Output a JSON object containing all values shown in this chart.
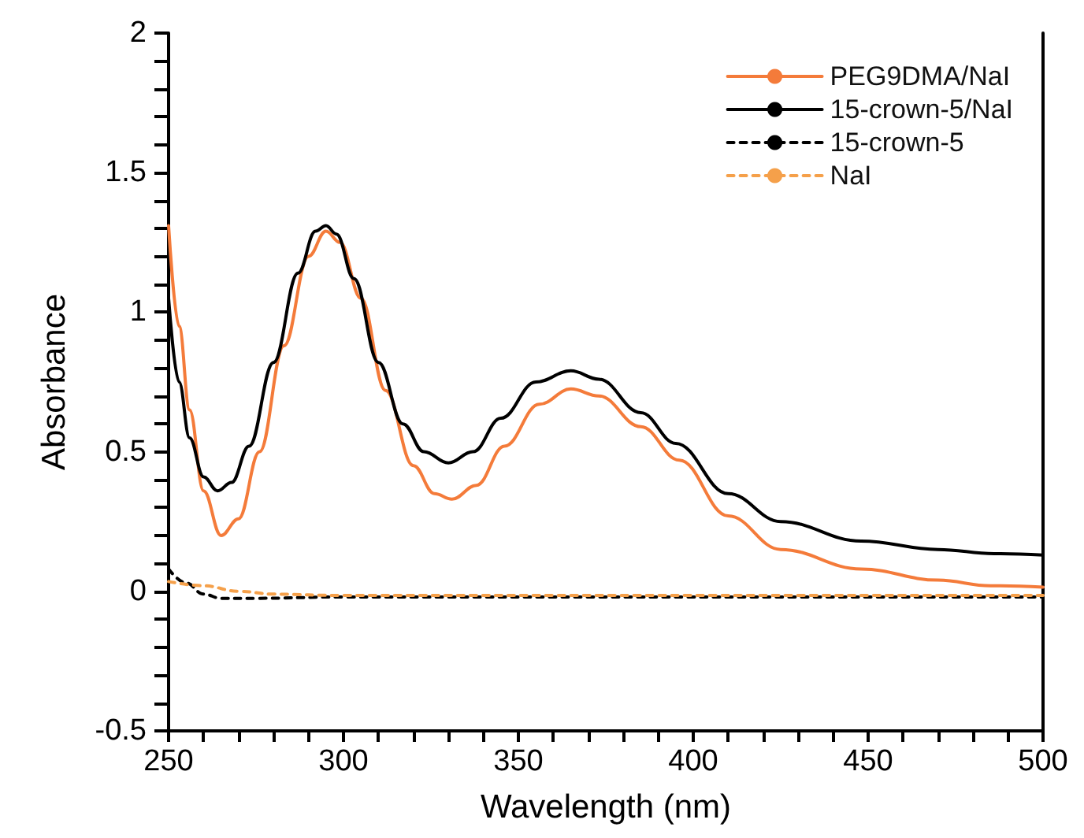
{
  "chart_data": {
    "type": "line",
    "xlabel": "Wavelength (nm)",
    "ylabel": "Absorbance",
    "xlim": [
      250,
      500
    ],
    "ylim": [
      -0.5,
      2
    ],
    "xticks": [
      250,
      {
        "value": 260,
        "label": null
      },
      {
        "value": 270,
        "label": null
      },
      {
        "value": 280,
        "label": null
      },
      {
        "value": 290,
        "label": null
      },
      300,
      {
        "value": 310,
        "label": null
      },
      {
        "value": 320,
        "label": null
      },
      {
        "value": 330,
        "label": null
      },
      {
        "value": 340,
        "label": null
      },
      350,
      {
        "value": 360,
        "label": null
      },
      {
        "value": 370,
        "label": null
      },
      {
        "value": 380,
        "label": null
      },
      {
        "value": 390,
        "label": null
      },
      400,
      {
        "value": 410,
        "label": null
      },
      {
        "value": 420,
        "label": null
      },
      {
        "value": 430,
        "label": null
      },
      {
        "value": 440,
        "label": null
      },
      450,
      {
        "value": 460,
        "label": null
      },
      {
        "value": 470,
        "label": null
      },
      {
        "value": 480,
        "label": null
      },
      {
        "value": 490,
        "label": null
      },
      500
    ],
    "yticks": [
      -0.5,
      {
        "value": -0.4,
        "label": null
      },
      {
        "value": -0.3,
        "label": null
      },
      {
        "value": -0.2,
        "label": null
      },
      {
        "value": -0.1,
        "label": null
      },
      0,
      {
        "value": 0.1,
        "label": null
      },
      {
        "value": 0.2,
        "label": null
      },
      {
        "value": 0.3,
        "label": null
      },
      {
        "value": 0.4,
        "label": null
      },
      0.5,
      {
        "value": 0.6,
        "label": null
      },
      {
        "value": 0.7,
        "label": null
      },
      {
        "value": 0.8,
        "label": null
      },
      {
        "value": 0.9,
        "label": null
      },
      1,
      {
        "value": 1.1,
        "label": null
      },
      {
        "value": 1.2,
        "label": null
      },
      {
        "value": 1.3,
        "label": null
      },
      {
        "value": 1.4,
        "label": null
      },
      1.5,
      {
        "value": 1.6,
        "label": null
      },
      {
        "value": 1.7,
        "label": null
      },
      {
        "value": 1.8,
        "label": null
      },
      {
        "value": 1.9,
        "label": null
      },
      2
    ],
    "grid": false,
    "legend": "top right",
    "marker": "none",
    "series": [
      {
        "name": "PEG9DMA/NaI",
        "color": "#f47b3a",
        "line_style": "solid",
        "x": [
          250,
          253,
          256,
          260,
          265,
          270,
          276,
          283,
          290,
          295,
          299,
          305,
          312,
          320,
          326,
          331,
          338,
          346,
          356,
          365,
          373,
          385,
          396,
          410,
          425,
          448,
          470,
          485,
          500
        ],
        "values": [
          1.31,
          0.95,
          0.65,
          0.36,
          0.2,
          0.26,
          0.5,
          0.88,
          1.2,
          1.29,
          1.25,
          1.05,
          0.72,
          0.45,
          0.35,
          0.33,
          0.38,
          0.52,
          0.67,
          0.725,
          0.7,
          0.59,
          0.47,
          0.27,
          0.15,
          0.08,
          0.04,
          0.02,
          0.015
        ]
      },
      {
        "name": "15-crown-5/NaI",
        "color": "#000000",
        "line_style": "solid",
        "x": [
          250,
          253,
          256,
          260,
          264,
          268,
          273,
          280,
          287,
          292,
          295,
          298,
          303,
          310,
          317,
          323,
          330,
          337,
          345,
          355,
          365,
          373,
          385,
          395,
          410,
          425,
          448,
          470,
          486,
          500
        ],
        "values": [
          1.05,
          0.75,
          0.55,
          0.41,
          0.36,
          0.39,
          0.52,
          0.82,
          1.14,
          1.29,
          1.31,
          1.28,
          1.12,
          0.82,
          0.6,
          0.5,
          0.46,
          0.5,
          0.62,
          0.75,
          0.79,
          0.76,
          0.64,
          0.53,
          0.35,
          0.25,
          0.18,
          0.15,
          0.135,
          0.13
        ]
      },
      {
        "name": "15-crown-5",
        "color": "#000000",
        "line_style": "dashed",
        "x": [
          250,
          255,
          260,
          265,
          275,
          300,
          400,
          500
        ],
        "values": [
          0.08,
          0.03,
          -0.01,
          -0.025,
          -0.025,
          -0.02,
          -0.02,
          -0.02
        ]
      },
      {
        "name": "NaI",
        "color": "#f5a04a",
        "line_style": "dashed",
        "x": [
          250,
          260,
          270,
          280,
          300,
          400,
          500
        ],
        "values": [
          0.035,
          0.02,
          0,
          -0.01,
          -0.015,
          -0.015,
          -0.015
        ]
      }
    ]
  }
}
